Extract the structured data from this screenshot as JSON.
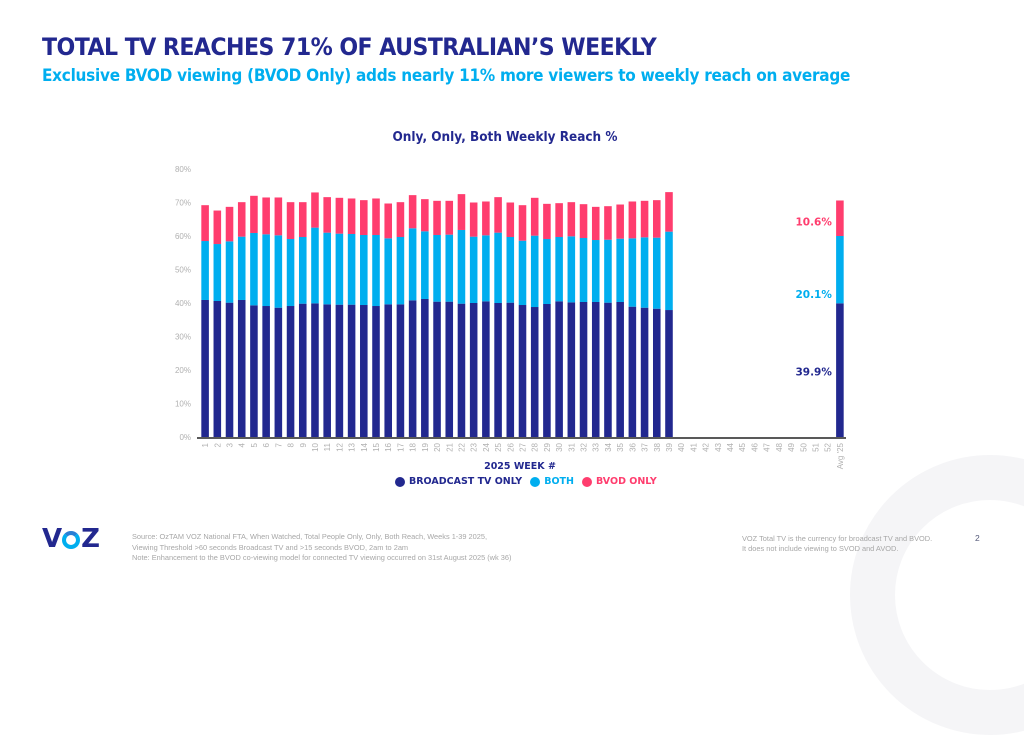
{
  "header": {
    "title": "TOTAL TV REACHES 71% OF AUSTRALIAN’S WEEKLY",
    "subtitle": "Exclusive BVOD viewing (BVOD Only) adds nearly 11% more viewers to weekly reach on average"
  },
  "colors": {
    "broadcast": "#22288f",
    "both": "#00aeef",
    "bvod": "#ff3d6e",
    "axis_text": "#b0b0b0",
    "title": "#22288f"
  },
  "chart_data": {
    "type": "bar",
    "stacked": true,
    "title": "Only, Only, Both Weekly Reach %",
    "xlabel": "2025 WEEK #",
    "ylabel": "",
    "ylim": [
      0,
      80
    ],
    "yticks": [
      "0%",
      "10%",
      "20%",
      "30%",
      "40%",
      "50%",
      "60%",
      "70%",
      "80%"
    ],
    "grid": false,
    "legend_position": "bottom",
    "categories": [
      "1",
      "2",
      "3",
      "4",
      "5",
      "6",
      "7",
      "8",
      "9",
      "10",
      "11",
      "12",
      "13",
      "14",
      "15",
      "16",
      "17",
      "18",
      "19",
      "20",
      "21",
      "22",
      "23",
      "24",
      "25",
      "26",
      "27",
      "28",
      "29",
      "30",
      "31",
      "32",
      "33",
      "34",
      "35",
      "36",
      "37",
      "38",
      "39",
      "40",
      "41",
      "42",
      "43",
      "44",
      "45",
      "46",
      "47",
      "48",
      "49",
      "50",
      "51",
      "52",
      "Avg '25"
    ],
    "series": [
      {
        "name": "BROADCAST TV ONLY",
        "color": "#22288f",
        "values": [
          40.9,
          40.6,
          40.1,
          40.9,
          39.3,
          39.1,
          38.6,
          39.1,
          39.8,
          39.9,
          39.6,
          39.5,
          39.5,
          39.4,
          39.1,
          39.6,
          39.6,
          40.8,
          41.2,
          40.4,
          40.4,
          39.8,
          40.0,
          40.5,
          40.0,
          40.1,
          39.4,
          38.8,
          39.7,
          40.5,
          40.2,
          40.3,
          40.3,
          40.1,
          40.3,
          38.9,
          38.6,
          38.3,
          37.9,
          null,
          null,
          null,
          null,
          null,
          null,
          null,
          null,
          null,
          null,
          null,
          null,
          null,
          39.9
        ]
      },
      {
        "name": "BOTH",
        "color": "#00aeef",
        "values": [
          17.6,
          17.0,
          18.3,
          18.9,
          21.6,
          21.4,
          21.6,
          20.0,
          19.9,
          22.6,
          21.4,
          21.2,
          21.1,
          20.9,
          21.2,
          19.7,
          20.1,
          21.5,
          20.2,
          19.9,
          20.0,
          22.0,
          19.8,
          19.7,
          21.0,
          19.6,
          19.2,
          21.3,
          19.4,
          19.2,
          19.7,
          19.1,
          18.5,
          18.8,
          18.9,
          20.4,
          21.0,
          21.2,
          23.4,
          null,
          null,
          null,
          null,
          null,
          null,
          null,
          null,
          null,
          null,
          null,
          null,
          null,
          20.1
        ]
      },
      {
        "name": "BVOD ONLY",
        "color": "#ff3d6e",
        "values": [
          10.7,
          10.0,
          10.3,
          10.3,
          11.1,
          11.0,
          11.3,
          11.0,
          10.4,
          10.5,
          10.6,
          10.7,
          10.6,
          10.4,
          10.9,
          10.4,
          10.4,
          9.9,
          9.6,
          10.2,
          10.1,
          10.7,
          10.2,
          10.1,
          10.6,
          10.3,
          10.6,
          11.3,
          10.5,
          10.1,
          10.2,
          10.1,
          9.9,
          10.0,
          10.2,
          11.0,
          10.9,
          11.2,
          11.8,
          null,
          null,
          null,
          null,
          null,
          null,
          null,
          null,
          null,
          null,
          null,
          null,
          null,
          10.6
        ]
      }
    ],
    "annotations": [
      {
        "series": "BVOD ONLY",
        "category": "Avg '25",
        "label": "10.6%"
      },
      {
        "series": "BOTH",
        "category": "Avg '25",
        "label": "20.1%"
      },
      {
        "series": "BROADCAST TV ONLY",
        "category": "Avg '25",
        "label": "39.9%"
      }
    ]
  },
  "legend": [
    {
      "label": "BROADCAST TV ONLY",
      "color": "#22288f"
    },
    {
      "label": "BOTH",
      "color": "#00aeef"
    },
    {
      "label": "BVOD ONLY",
      "color": "#ff3d6e"
    }
  ],
  "footer": {
    "logo": "VOZ",
    "source_lines": [
      "Source: OzTAM VOZ National FTA, When Watched, Total People Only, Only, Both Reach, Weeks 1-39 2025,",
      "Viewing Threshold >60 seconds Broadcast TV and >15 seconds BVOD, 2am to 2am",
      "Note: Enhancement to the BVOD co-viewing model for connected TV viewing occurred on 31st August 2025 (wk 36)"
    ],
    "disclaimer_lines": [
      "VOZ Total TV is the currency for broadcast TV and BVOD.",
      "It does not include viewing to SVOD and AVOD."
    ],
    "page_number": "2"
  }
}
